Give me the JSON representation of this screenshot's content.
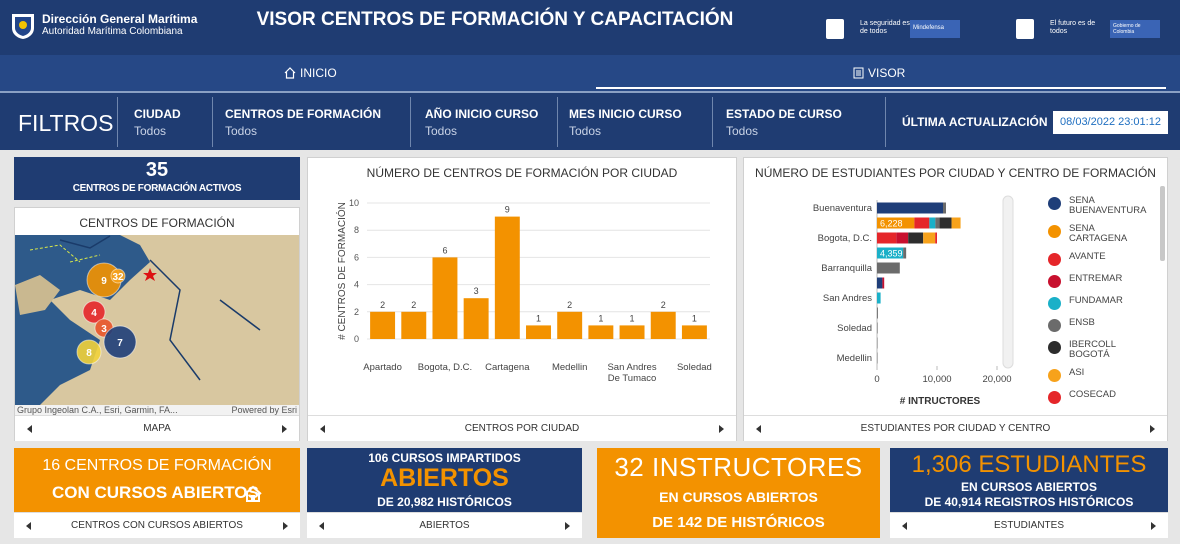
{
  "header": {
    "org_name": "Dirección General Marítima",
    "org_subtitle": "Autoridad Marítima Colombiana",
    "title": "VISOR CENTROS DE FORMACIÓN Y CAPACITACIÓN",
    "logo1_text": "La seguridad es de todos",
    "logo1_badge": "Mindefensa",
    "logo2_text": "El futuro es de todos",
    "logo2_badge": "Gobierno de Colombia"
  },
  "nav": [
    "INICIO",
    "VISOR"
  ],
  "filters": {
    "title": "FILTROS",
    "items": [
      {
        "label": "CIUDAD",
        "value": "Todos"
      },
      {
        "label": "CENTROS DE FORMACIÓN",
        "value": "Todos"
      },
      {
        "label": "AÑO INICIO CURSO",
        "value": "Todos"
      },
      {
        "label": "MES INICIO CURSO",
        "value": "Todos"
      },
      {
        "label": "ESTADO DE CURSO",
        "value": "Todos"
      }
    ],
    "updated_label": "ÚLTIMA ACTUALIZACIÓN",
    "updated_value": "08/03/2022 23:01:12"
  },
  "kpi_active": {
    "value": 35,
    "label": "CENTROS DE FORMACIÓN ACTIVOS"
  },
  "map": {
    "title": "CENTROS DE FORMACIÓN",
    "clusters": [
      9,
      32,
      4,
      3,
      7,
      8
    ],
    "attribution": "Grupo Ingeolan C.A., Esri, Garmin, FA...",
    "powered_by": "Powered by Esri",
    "tab": "MAPA"
  },
  "chart_data": [
    {
      "type": "bar",
      "title": "NÚMERO DE CENTROS DE FORMACIÓN POR CIUDAD",
      "y_label": "# CENTROS DE FORMACIÓN",
      "categories": [
        "Apartado",
        null,
        "Bogota, D.C.",
        null,
        "Cartagena",
        null,
        "Medellin",
        null,
        "San Andres De Tumaco",
        null,
        "Soledad"
      ],
      "values": [
        2,
        2,
        6,
        3,
        9,
        1,
        2,
        1,
        1,
        2,
        1
      ],
      "color": "#f39200",
      "ylim": [
        0,
        10
      ],
      "yticks": [
        0,
        2,
        4,
        6,
        8,
        10
      ],
      "grid": true,
      "tab": "CENTROS POR CIUDAD"
    },
    {
      "type": "bar",
      "orientation": "horizontal",
      "stacked": true,
      "title": "NÚMERO DE ESTUDIANTES POR CIUDAD Y CENTRO DE FORMACIÓN",
      "x_label": "# INTRUCTORES",
      "categories": [
        "Buenaventura",
        null,
        "Bogota, D.C.",
        null,
        "Barranquilla",
        null,
        "San Andres",
        null,
        "Soledad",
        null,
        "Medellin"
      ],
      "series": [
        {
          "name": "SENA BUENAVENTURA",
          "color": "#1f3e79",
          "values": [
            11000,
            null,
            null,
            null,
            null,
            900,
            null,
            null,
            null,
            null,
            null
          ]
        },
        {
          "name": "SENA CARTAGENA",
          "color": "#f39200",
          "values": [
            null,
            6228,
            null,
            null,
            null,
            null,
            null,
            null,
            null,
            null,
            null
          ],
          "value_labels": [
            null,
            "6,228",
            null,
            null,
            null,
            null,
            null,
            null,
            null,
            null,
            null
          ]
        },
        {
          "name": "AVANTE",
          "color": "#e5262a",
          "values": [
            null,
            2500,
            3200,
            null,
            null,
            null,
            null,
            null,
            null,
            null,
            null
          ]
        },
        {
          "name": "ENTREMAR",
          "color": "#c8102e",
          "values": [
            null,
            null,
            2000,
            null,
            null,
            300,
            null,
            null,
            null,
            null,
            null
          ]
        },
        {
          "name": "FUNDAMAR",
          "color": "#1ab0c8",
          "values": [
            null,
            1000,
            null,
            4359,
            null,
            null,
            600,
            null,
            null,
            null,
            null
          ],
          "value_labels": [
            null,
            null,
            null,
            "4,359",
            null,
            null,
            null,
            null,
            null,
            null,
            null
          ]
        },
        {
          "name": "ENSB",
          "color": "#6b6b6b",
          "values": [
            500,
            700,
            null,
            500,
            3800,
            null,
            null,
            150,
            100,
            80,
            50
          ]
        },
        {
          "name": "IBERCOLL BOGOTÁ",
          "color": "#2d2d2d",
          "values": [
            null,
            2000,
            2500,
            null,
            null,
            null,
            null,
            null,
            null,
            null,
            null
          ]
        },
        {
          "name": "ASI",
          "color": "#f7a21b",
          "values": [
            null,
            1500,
            2000,
            null,
            null,
            null,
            null,
            null,
            null,
            null,
            null
          ]
        },
        {
          "name": "COSECAD",
          "color": "#e5262a",
          "values": [
            null,
            null,
            300,
            null,
            null,
            null,
            null,
            null,
            null,
            null,
            null
          ]
        }
      ],
      "xlim": [
        0,
        21000
      ],
      "xticks": [
        0,
        {
          "value": 10000,
          "label": "10,000"
        },
        {
          "value": 20000,
          "label": "20,000"
        }
      ],
      "grid": false,
      "tab": "ESTUDIANTES POR CIUDAD Y CENTRO"
    }
  ],
  "cards": [
    {
      "line1": "16 CENTROS DE FORMACIÓN",
      "line2": "CON CURSOS ABIERTOS",
      "tab": "CENTROS CON CURSOS ABIERTOS"
    },
    {
      "line1": "106 CURSOS IMPARTIDOS",
      "line2": "ABIERTOS",
      "line3": "DE 20,982 HISTÓRICOS",
      "tab": "ABIERTOS"
    },
    {
      "line1": "32 INSTRUCTORES",
      "line2": "EN CURSOS ABIERTOS",
      "line3": "DE 142 DE HISTÓRICOS"
    },
    {
      "line1": "1,306 ESTUDIANTES",
      "line2": "EN CURSOS ABIERTOS",
      "line3": "DE 40,914 REGISTROS HISTÓRICOS",
      "tab": "ESTUDIANTES"
    }
  ]
}
